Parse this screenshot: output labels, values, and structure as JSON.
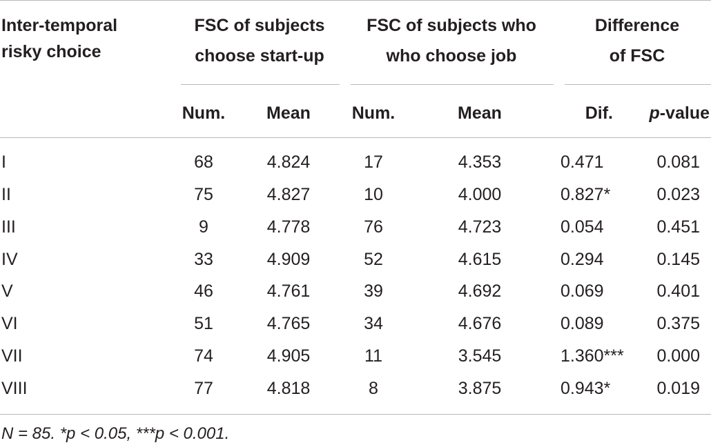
{
  "table": {
    "header": {
      "row_label": [
        "Inter-temporal",
        "risky choice"
      ],
      "group_startup": [
        "FSC of subjects",
        "choose start-up"
      ],
      "group_job": [
        "FSC of subjects who",
        "who choose job"
      ],
      "group_diff": [
        "Difference",
        "of FSC"
      ],
      "sub_num": "Num.",
      "sub_mean": "Mean",
      "sub_dif": "Dif.",
      "sub_p_italic": "p",
      "sub_p_rest": "-value"
    },
    "rows": [
      {
        "label": "I",
        "startup_num": "68",
        "startup_mean": "4.824",
        "job_num": "17",
        "job_mean": "4.353",
        "dif": "0.471",
        "p": "0.081"
      },
      {
        "label": "II",
        "startup_num": "75",
        "startup_mean": "4.827",
        "job_num": "10",
        "job_mean": "4.000",
        "dif": "0.827*",
        "p": "0.023"
      },
      {
        "label": "III",
        "startup_num": "9",
        "startup_mean": "4.778",
        "job_num": "76",
        "job_mean": "4.723",
        "dif": "0.054",
        "p": "0.451"
      },
      {
        "label": "IV",
        "startup_num": "33",
        "startup_mean": "4.909",
        "job_num": "52",
        "job_mean": "4.615",
        "dif": "0.294",
        "p": "0.145"
      },
      {
        "label": "V",
        "startup_num": "46",
        "startup_mean": "4.761",
        "job_num": "39",
        "job_mean": "4.692",
        "dif": "0.069",
        "p": "0.401"
      },
      {
        "label": "VI",
        "startup_num": "51",
        "startup_mean": "4.765",
        "job_num": "34",
        "job_mean": "4.676",
        "dif": "0.089",
        "p": "0.375"
      },
      {
        "label": "VII",
        "startup_num": "74",
        "startup_mean": "4.905",
        "job_num": "11",
        "job_mean": "3.545",
        "dif": "1.360***",
        "p": "0.000"
      },
      {
        "label": "VIII",
        "startup_num": "77",
        "startup_mean": "4.818",
        "job_num": "8",
        "job_mean": "3.875",
        "dif": "0.943*",
        "p": "0.019"
      }
    ],
    "footnote": "N = 85. *p < 0.05, ***p < 0.001."
  }
}
